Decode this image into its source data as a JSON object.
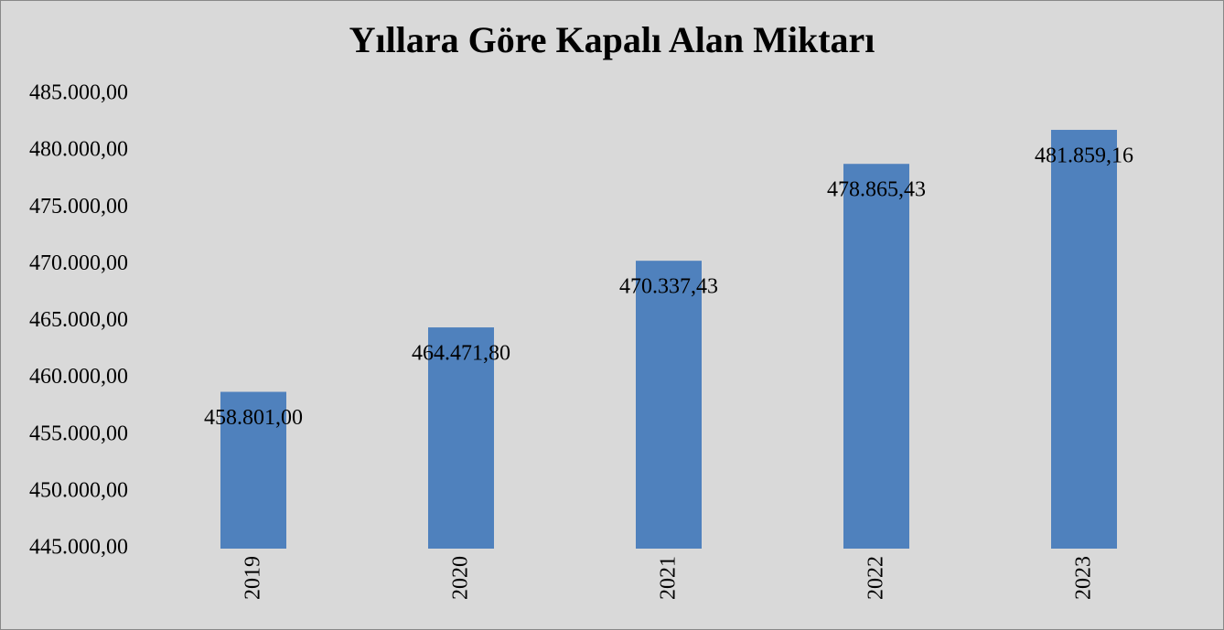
{
  "chart_data": {
    "type": "bar",
    "title": "Yıllara Göre Kapalı Alan Miktarı",
    "categories": [
      "2019",
      "2020",
      "2021",
      "2022",
      "2023"
    ],
    "values": [
      458801.0,
      464471.8,
      470337.43,
      478865.43,
      481859.16
    ],
    "value_labels": [
      "458.801,00",
      "464.471,80",
      "470.337,43",
      "478.865,43",
      "481.859,16"
    ],
    "color": "#4f81bd",
    "ylim": [
      445000,
      485000
    ],
    "yticks": [
      {
        "value": 445000,
        "label": "445.000,00"
      },
      {
        "value": 450000,
        "label": "450.000,00"
      },
      {
        "value": 455000,
        "label": "455.000,00"
      },
      {
        "value": 460000,
        "label": "460.000,00"
      },
      {
        "value": 465000,
        "label": "465.000,00"
      },
      {
        "value": 470000,
        "label": "470.000,00"
      },
      {
        "value": 475000,
        "label": "475.000,00"
      },
      {
        "value": 480000,
        "label": "480.000,00"
      },
      {
        "value": 485000,
        "label": "485.000,00"
      }
    ],
    "grid": false
  }
}
